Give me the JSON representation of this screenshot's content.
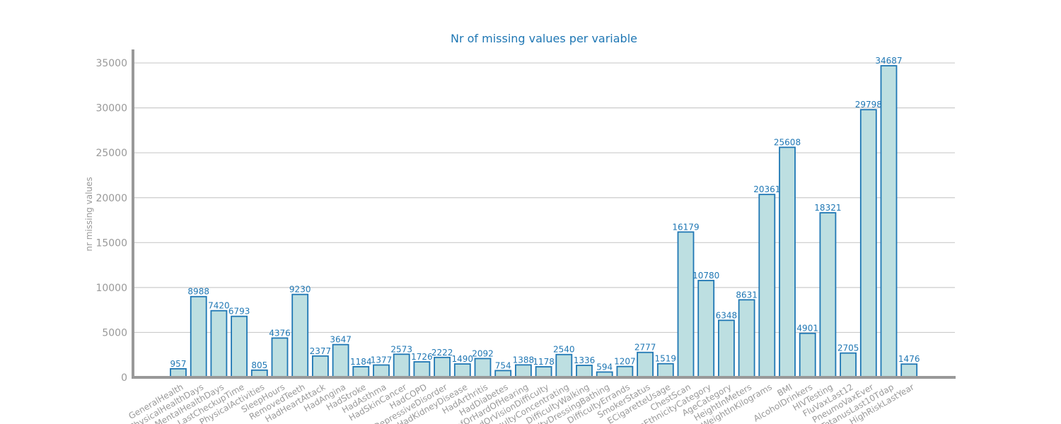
{
  "chart_data": {
    "type": "bar",
    "title": "Nr of missing values per variable",
    "xlabel": "",
    "ylabel": "nr missing values",
    "ylim": [
      0,
      36500
    ],
    "yticks": [
      0,
      5000,
      10000,
      15000,
      20000,
      25000,
      30000,
      35000
    ],
    "grid": true,
    "categories": [
      "GeneralHealth",
      "PhysicalHealthDays",
      "MentalHealthDays",
      "LastCheckupTime",
      "PhysicalActivities",
      "SleepHours",
      "RemovedTeeth",
      "HadHeartAttack",
      "HadAngina",
      "HadStroke",
      "HadAsthma",
      "HadSkinCancer",
      "HadCOPD",
      "HadDepressiveDisorder",
      "HadKidneyDisease",
      "HadArthritis",
      "HadDiabetes",
      "DeafOrHardOfHearing",
      "BlindOrVisionDifficulty",
      "DifficultyConcentrating",
      "DifficultyWalking",
      "DifficultyDressingBathing",
      "DifficultyErrands",
      "SmokerStatus",
      "ECigaretteUsage",
      "ChestScan",
      "RaceEthnicityCategory",
      "AgeCategory",
      "HeightInMeters",
      "WeightInKilograms",
      "BMI",
      "AlcoholDrinkers",
      "HIVTesting",
      "FluVaxLast12",
      "PneumoVaxEver",
      "TetanusLast10Tdap",
      "HighRiskLastYear"
    ],
    "values": [
      957,
      8988,
      7420,
      6793,
      805,
      4376,
      9230,
      2377,
      3647,
      1184,
      1377,
      2573,
      1726,
      2222,
      1490,
      2092,
      754,
      1388,
      1178,
      2540,
      1336,
      594,
      1207,
      2777,
      1519,
      16179,
      10780,
      6348,
      8631,
      20361,
      25608,
      4901,
      18321,
      2705,
      29798,
      34687,
      1476
    ],
    "value_labels": [
      "957",
      "8988",
      "7420",
      "6793",
      "805",
      "4376",
      "9230",
      "2377",
      "3647",
      "1184",
      "1377",
      "2573",
      "1726",
      "2222",
      "1490",
      "2092",
      "754",
      "1388",
      "1178",
      "2540",
      "1336",
      "594",
      "1207",
      "2777",
      "1519",
      "16179",
      "10780",
      "6348",
      "8631",
      "20361",
      "25608",
      "4901",
      "18321",
      "2705",
      "29798",
      "34687",
      "1476"
    ],
    "colors": {
      "bar_fill": "#bddfe1",
      "bar_edge": "#1f77b4",
      "text": "#1f77b4",
      "axis": "#999999",
      "grid": "#cccccc"
    }
  }
}
